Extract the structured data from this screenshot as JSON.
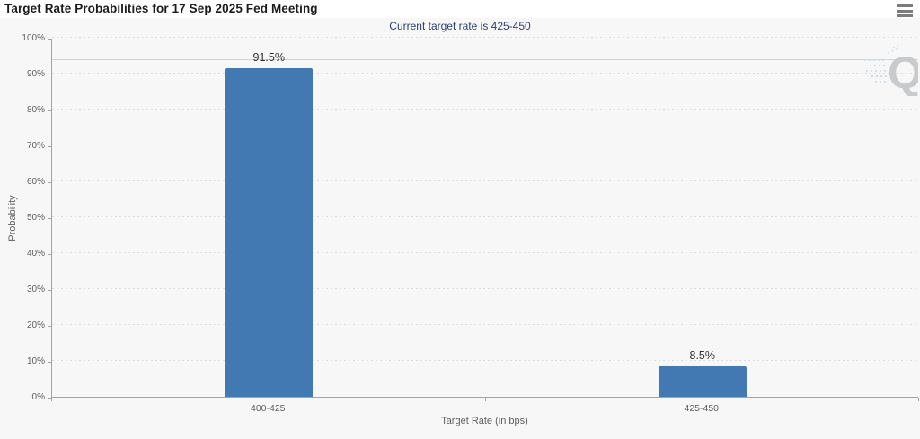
{
  "header": {
    "title": "Target Rate Probabilities for 17 Sep 2025 Fed Meeting"
  },
  "icons": {
    "menu": "hamburger-menu-icon",
    "watermark": "quikstrike-q-logo",
    "watermark_letter": "Q"
  },
  "colors": {
    "bar": "#4379b2",
    "subtitle_navy": "#2e4172",
    "axis_text": "#606060",
    "reference_line": "#d2d2d2"
  },
  "chart_data": {
    "type": "bar",
    "title": "Target Rate Probabilities for 17 Sep 2025 Fed Meeting",
    "subtitle": "Current target rate is 425-450",
    "categories": [
      "400-425",
      "425-450"
    ],
    "values": [
      91.5,
      8.5
    ],
    "value_labels": [
      "91.5%",
      "8.5%"
    ],
    "xlabel": "Target Rate (in bps)",
    "ylabel": "Probability",
    "ylim": [
      0,
      100
    ],
    "ytick_step": 10,
    "ytick_labels": [
      "0%",
      "10%",
      "20%",
      "30%",
      "40%",
      "50%",
      "60%",
      "70%",
      "80%",
      "90%",
      "100%"
    ],
    "grid": "dotted-horizontal",
    "legend": "none",
    "bar_color": "#4379b2",
    "reference_line_value": 93.75
  }
}
